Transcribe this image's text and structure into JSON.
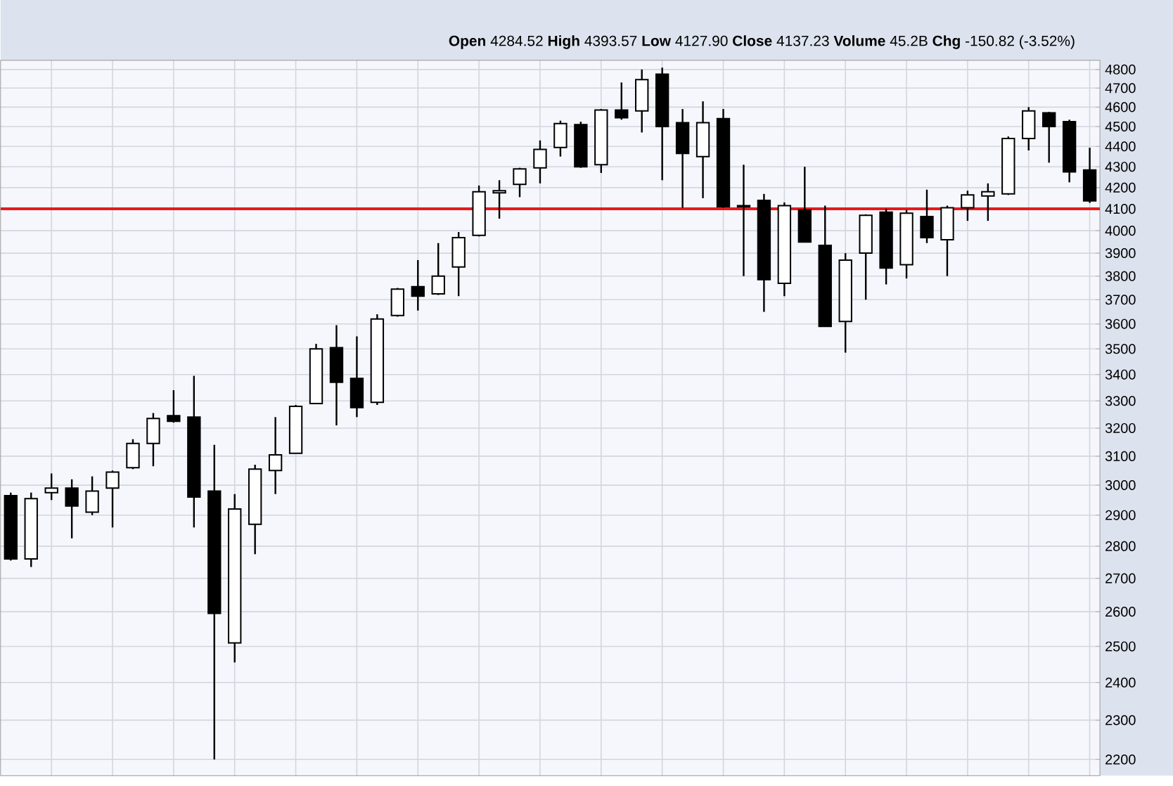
{
  "chart_data": {
    "type": "candlestick",
    "annotations": [
      "**Open** 4284.52  **High** 4393.57  **Low** 4127.90  **Close** 4137.23  **Volume** 45.2B  **Chg** -150.82 (-3.52%)"
    ],
    "categories": [
      null,
      null,
      null,
      null,
      null,
      null,
      null,
      null,
      null,
      null,
      null,
      null,
      null,
      null,
      null,
      null,
      null,
      null,
      null,
      null,
      null,
      null,
      null,
      null,
      null,
      null,
      null,
      null,
      null,
      null,
      null,
      null,
      null,
      null,
      null,
      null,
      null,
      null,
      null,
      null,
      null,
      null,
      null,
      null,
      null,
      null,
      null,
      null,
      null,
      null,
      null,
      null,
      null,
      null
    ],
    "ylim": [
      2160,
      4850
    ],
    "yticks": [
      2200,
      2300,
      2400,
      2500,
      2600,
      2700,
      2800,
      2900,
      3000,
      3100,
      3200,
      3300,
      3400,
      3500,
      3600,
      3700,
      3800,
      3900,
      4000,
      4100,
      4200,
      4300,
      4400,
      4500,
      4600,
      4700,
      4800
    ],
    "log": true,
    "grid": true,
    "tick_labels": "y",
    "color": "#000000",
    "ohlc": [
      [
        2965,
        2975,
        2755,
        2760
      ],
      [
        2760,
        2975,
        2735,
        2955
      ],
      [
        2975,
        3040,
        2950,
        2990
      ],
      [
        2990,
        3020,
        2825,
        2930
      ],
      [
        2910,
        3030,
        2900,
        2980
      ],
      [
        2990,
        3050,
        2860,
        3045
      ],
      [
        3060,
        3160,
        3055,
        3145
      ],
      [
        3145,
        3255,
        3065,
        3235
      ],
      [
        3245,
        3340,
        3220,
        3225
      ],
      [
        3240,
        3395,
        2860,
        2960
      ],
      [
        2980,
        3140,
        2200,
        2595
      ],
      [
        2510,
        2970,
        2455,
        2920
      ],
      [
        2870,
        3070,
        2775,
        3055
      ],
      [
        3050,
        3240,
        2970,
        3105
      ],
      [
        3110,
        3285,
        3110,
        3280
      ],
      [
        3290,
        3520,
        3290,
        3500
      ],
      [
        3505,
        3595,
        3210,
        3370
      ],
      [
        3385,
        3550,
        3240,
        3275
      ],
      [
        3295,
        3640,
        3285,
        3620
      ],
      [
        3635,
        3750,
        3630,
        3745
      ],
      [
        3755,
        3870,
        3655,
        3715
      ],
      [
        3725,
        3945,
        3720,
        3800
      ],
      [
        3840,
        3995,
        3715,
        3970
      ],
      [
        3980,
        4210,
        3975,
        4180
      ],
      [
        4175,
        4235,
        4055,
        4185
      ],
      [
        4215,
        4295,
        4155,
        4290
      ],
      [
        4295,
        4430,
        4220,
        4385
      ],
      [
        4395,
        4530,
        4350,
        4515
      ],
      [
        4510,
        4525,
        4295,
        4300
      ],
      [
        4310,
        4590,
        4270,
        4585
      ],
      [
        4585,
        4730,
        4535,
        4545
      ],
      [
        4580,
        4800,
        4470,
        4745
      ],
      [
        4775,
        4810,
        4235,
        4500
      ],
      [
        4520,
        4590,
        4105,
        4365
      ],
      [
        4350,
        4630,
        4150,
        4520
      ],
      [
        4540,
        4590,
        4105,
        4110
      ],
      [
        4110,
        4310,
        3800,
        4115
      ],
      [
        4140,
        4170,
        3650,
        3785
      ],
      [
        3770,
        4130,
        3715,
        4115
      ],
      [
        4095,
        4300,
        3950,
        3950
      ],
      [
        3935,
        4115,
        3590,
        3590
      ],
      [
        3610,
        3900,
        3485,
        3870
      ],
      [
        3900,
        4075,
        3700,
        4070
      ],
      [
        4085,
        4100,
        3765,
        3835
      ],
      [
        3850,
        4095,
        3790,
        4080
      ],
      [
        4065,
        4190,
        3945,
        3970
      ],
      [
        3960,
        4115,
        3800,
        4105
      ],
      [
        4105,
        4185,
        4045,
        4165
      ],
      [
        4160,
        4220,
        4045,
        4180
      ],
      [
        4170,
        4450,
        4165,
        4440
      ],
      [
        4440,
        4600,
        4380,
        4580
      ],
      [
        4570,
        4575,
        4320,
        4500
      ],
      [
        4525,
        4535,
        4225,
        4275
      ],
      [
        4284.52,
        4393.57,
        4127.9,
        4137.23
      ]
    ],
    "ref_lines": [
      {
        "axis": "y",
        "value": 4100,
        "color": "#e8191c"
      }
    ]
  }
}
